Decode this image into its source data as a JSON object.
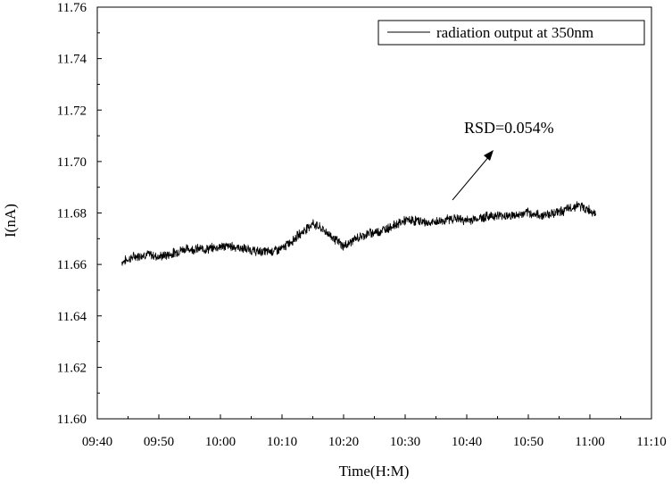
{
  "chart_data": {
    "type": "line",
    "xlabel": "Time(H:M)",
    "ylabel": "I(nA)",
    "xlim": [
      "09:40",
      "11:10"
    ],
    "ylim": [
      11.6,
      11.76
    ],
    "x_ticks": [
      "09:40",
      "09:50",
      "10:00",
      "10:10",
      "10:20",
      "10:30",
      "10:40",
      "10:50",
      "11:00",
      "11:10"
    ],
    "y_ticks": [
      "11.60",
      "11.62",
      "11.64",
      "11.66",
      "11.68",
      "11.70",
      "11.72",
      "11.74",
      "11.76"
    ],
    "grid": false,
    "legend_position": "top-right",
    "annotation": "RSD=0.054%",
    "series": [
      {
        "name": "radiation output at 350nm",
        "color": "#000000",
        "x": [
          "09:44",
          "09:46",
          "09:48",
          "09:50",
          "09:52",
          "09:54",
          "09:56",
          "09:58",
          "10:00",
          "10:02",
          "10:04",
          "10:06",
          "10:08",
          "10:10",
          "10:12",
          "10:14",
          "10:15",
          "10:17",
          "10:19",
          "10:20",
          "10:22",
          "10:24",
          "10:26",
          "10:28",
          "10:30",
          "10:32",
          "10:34",
          "10:36",
          "10:38",
          "10:40",
          "10:42",
          "10:44",
          "10:46",
          "10:48",
          "10:50",
          "10:52",
          "10:54",
          "10:56",
          "10:58",
          "11:00",
          "11:01"
        ],
        "values": [
          11.661,
          11.663,
          11.664,
          11.663,
          11.664,
          11.666,
          11.666,
          11.666,
          11.667,
          11.667,
          11.666,
          11.665,
          11.665,
          11.666,
          11.67,
          11.674,
          11.676,
          11.673,
          11.669,
          11.667,
          11.67,
          11.672,
          11.673,
          11.675,
          11.677,
          11.677,
          11.676,
          11.677,
          11.678,
          11.677,
          11.678,
          11.679,
          11.679,
          11.679,
          11.68,
          11.679,
          11.68,
          11.681,
          11.683,
          11.681,
          11.68
        ]
      }
    ]
  }
}
